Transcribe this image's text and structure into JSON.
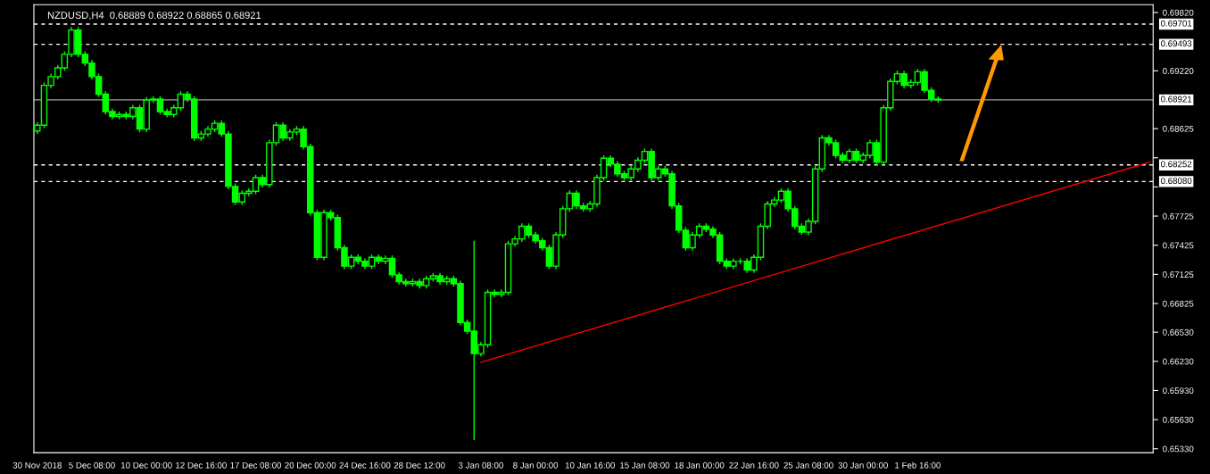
{
  "chart_data": {
    "type": "candlestick",
    "title": "NZDUSD,H4  0.68889 0.68922 0.68865 0.68921",
    "ylim": [
      0.6529,
      0.699
    ],
    "categories": [
      "30 Nov 2018",
      null,
      null,
      null,
      null,
      null,
      null,
      null,
      "5 Dec 08:00",
      null,
      null,
      null,
      null,
      null,
      null,
      null,
      "10 Dec 00:00",
      null,
      null,
      null,
      null,
      null,
      null,
      null,
      "12 Dec 16:00",
      null,
      null,
      null,
      null,
      null,
      null,
      null,
      "17 Dec 08:00",
      null,
      null,
      null,
      null,
      null,
      null,
      null,
      "20 Dec 00:00",
      null,
      null,
      null,
      null,
      null,
      null,
      null,
      "24 Dec 16:00",
      null,
      null,
      null,
      null,
      null,
      null,
      null,
      "28 Dec 12:00",
      null,
      null,
      null,
      null,
      null,
      null,
      null,
      null,
      "3 Jan 08:00",
      null,
      null,
      null,
      null,
      null,
      null,
      null,
      "8 Jan 00:00",
      null,
      null,
      null,
      null,
      null,
      null,
      null,
      "10 Jan 16:00",
      null,
      null,
      null,
      null,
      null,
      null,
      null,
      "15 Jan 08:00",
      null,
      null,
      null,
      null,
      null,
      null,
      null,
      "18 Jan 00:00",
      null,
      null,
      null,
      null,
      null,
      null,
      null,
      "22 Jan 16:00",
      null,
      null,
      null,
      null,
      null,
      null,
      null,
      "25 Jan 08:00",
      null,
      null,
      null,
      null,
      null,
      null,
      null,
      "30 Jan 00:00",
      null,
      null,
      null,
      null,
      null,
      null,
      null,
      "1 Feb 16:00",
      null,
      null,
      null,
      null,
      null,
      null,
      null,
      null,
      null,
      null,
      null,
      null,
      null,
      null,
      null,
      null,
      null,
      null,
      null,
      null,
      null,
      null,
      null,
      null,
      null,
      null,
      null,
      null,
      null,
      null,
      null,
      null,
      null,
      null
    ],
    "yticks": [
      {
        "value": 0.6982,
        "label": "0.69820"
      },
      {
        "value": 0.6922,
        "label": "0.69220"
      },
      {
        "value": 0.68625,
        "label": "0.68625"
      },
      {
        "value": 0.68325,
        "label": null
      },
      {
        "value": 0.68025,
        "label": null
      },
      {
        "value": 0.67725,
        "label": "0.67725"
      },
      {
        "value": 0.67425,
        "label": "0.67425"
      },
      {
        "value": 0.67125,
        "label": "0.67125"
      },
      {
        "value": 0.66825,
        "label": "0.66825"
      },
      {
        "value": 0.6653,
        "label": "0.66530"
      },
      {
        "value": 0.6623,
        "label": "0.66230"
      },
      {
        "value": 0.6593,
        "label": "0.65930"
      },
      {
        "value": 0.6563,
        "label": "0.65630"
      },
      {
        "value": 0.6533,
        "label": "0.65330"
      }
    ],
    "ref_lines": [
      {
        "axis": "y",
        "value": 0.69701,
        "label": "0.69701",
        "color": "#ffffff",
        "line_style": "dashed"
      },
      {
        "axis": "y",
        "value": 0.69493,
        "label": "0.69493",
        "color": "#ffffff",
        "line_style": "dashed"
      },
      {
        "axis": "y",
        "value": 0.68921,
        "label": "0.68921",
        "color": "#a0a0a0",
        "line_style": "solid"
      },
      {
        "axis": "y",
        "value": 0.68252,
        "label": "0.68252",
        "color": "#ffffff",
        "line_style": "dashed"
      },
      {
        "axis": "y",
        "value": 0.6808,
        "label": "0.68080",
        "color": "#ffffff",
        "line_style": "dashed"
      }
    ],
    "series": [
      {
        "color": "#00ff00",
        "ohlc": [
          [
            0.686,
            0.6869,
            0.6857,
            0.6866
          ],
          [
            0.6866,
            0.691,
            0.6863,
            0.6907
          ],
          [
            0.6907,
            0.6919,
            0.6904,
            0.6916
          ],
          [
            0.6916,
            0.6928,
            0.6913,
            0.6925
          ],
          [
            0.6925,
            0.6942,
            0.6922,
            0.6939
          ],
          [
            0.6939,
            0.6967,
            0.6936,
            0.6964
          ],
          [
            0.6964,
            0.6967,
            0.6936,
            0.6939
          ],
          [
            0.6939,
            0.6942,
            0.6927,
            0.693
          ],
          [
            0.693,
            0.6933,
            0.6913,
            0.6916
          ],
          [
            0.6916,
            0.6919,
            0.6895,
            0.6898
          ],
          [
            0.6898,
            0.6901,
            0.6877,
            0.688
          ],
          [
            0.688,
            0.6883,
            0.6872,
            0.6875
          ],
          [
            0.6875,
            0.688,
            0.6872,
            0.6877
          ],
          [
            0.6877,
            0.688,
            0.6872,
            0.6875
          ],
          [
            0.6875,
            0.6887,
            0.6872,
            0.6884
          ],
          [
            0.6884,
            0.6887,
            0.6859,
            0.6862
          ],
          [
            0.6862,
            0.6895,
            0.6859,
            0.6892
          ],
          [
            0.6892,
            0.6896,
            0.6889,
            0.6893
          ],
          [
            0.6893,
            0.6896,
            0.6877,
            0.688
          ],
          [
            0.688,
            0.6883,
            0.6874,
            0.6877
          ],
          [
            0.6877,
            0.6887,
            0.6874,
            0.6884
          ],
          [
            0.6884,
            0.6901,
            0.6881,
            0.6898
          ],
          [
            0.6898,
            0.6901,
            0.689,
            0.6893
          ],
          [
            0.6893,
            0.6896,
            0.685,
            0.6853
          ],
          [
            0.6853,
            0.686,
            0.685,
            0.6857
          ],
          [
            0.6857,
            0.6865,
            0.6854,
            0.6862
          ],
          [
            0.6862,
            0.6871,
            0.6859,
            0.6868
          ],
          [
            0.6868,
            0.6871,
            0.6854,
            0.6857
          ],
          [
            0.6857,
            0.686,
            0.68,
            0.6803
          ],
          [
            0.6803,
            0.6806,
            0.6784,
            0.6787
          ],
          [
            0.6787,
            0.6799,
            0.6784,
            0.6796
          ],
          [
            0.6796,
            0.6801,
            0.6793,
            0.6798
          ],
          [
            0.6798,
            0.6815,
            0.6795,
            0.6812
          ],
          [
            0.6812,
            0.6815,
            0.6802,
            0.6805
          ],
          [
            0.6805,
            0.6851,
            0.6802,
            0.6848
          ],
          [
            0.6848,
            0.6869,
            0.6845,
            0.6866
          ],
          [
            0.6866,
            0.6869,
            0.685,
            0.6853
          ],
          [
            0.6853,
            0.6862,
            0.685,
            0.6859
          ],
          [
            0.6859,
            0.6865,
            0.6856,
            0.6862
          ],
          [
            0.6862,
            0.6865,
            0.6841,
            0.6844
          ],
          [
            0.6844,
            0.6847,
            0.6773,
            0.6776
          ],
          [
            0.6776,
            0.6779,
            0.6727,
            0.673
          ],
          [
            0.673,
            0.6779,
            0.6727,
            0.6776
          ],
          [
            0.6776,
            0.6779,
            0.6768,
            0.6771
          ],
          [
            0.6771,
            0.6774,
            0.6737,
            0.674
          ],
          [
            0.674,
            0.6743,
            0.6718,
            0.6721
          ],
          [
            0.6721,
            0.6733,
            0.6718,
            0.673
          ],
          [
            0.673,
            0.6733,
            0.6723,
            0.6726
          ],
          [
            0.6726,
            0.6729,
            0.6718,
            0.6721
          ],
          [
            0.6721,
            0.6733,
            0.6718,
            0.673
          ],
          [
            0.673,
            0.6733,
            0.6723,
            0.6726
          ],
          [
            0.6726,
            0.6732,
            0.6723,
            0.6729
          ],
          [
            0.6729,
            0.6732,
            0.6709,
            0.6712
          ],
          [
            0.6712,
            0.6715,
            0.6702,
            0.6705
          ],
          [
            0.6705,
            0.6708,
            0.67,
            0.6703
          ],
          [
            0.6703,
            0.6708,
            0.67,
            0.6705
          ],
          [
            0.6705,
            0.6708,
            0.6698,
            0.6701
          ],
          [
            0.6701,
            0.6711,
            0.6698,
            0.6708
          ],
          [
            0.6708,
            0.6714,
            0.6705,
            0.6711
          ],
          [
            0.6711,
            0.6714,
            0.6702,
            0.6705
          ],
          [
            0.6705,
            0.6711,
            0.6702,
            0.6708
          ],
          [
            0.6708,
            0.6711,
            0.67,
            0.6703
          ],
          [
            0.6703,
            0.6706,
            0.666,
            0.6663
          ],
          [
            0.6663,
            0.6666,
            0.6651,
            0.6654
          ],
          [
            0.6654,
            0.6747,
            0.6542,
            0.6631
          ],
          [
            0.6631,
            0.6643,
            0.6628,
            0.664
          ],
          [
            0.664,
            0.6697,
            0.6637,
            0.6694
          ],
          [
            0.6694,
            0.6697,
            0.6689,
            0.6692
          ],
          [
            0.6692,
            0.6697,
            0.6689,
            0.6694
          ],
          [
            0.6694,
            0.6747,
            0.6691,
            0.6744
          ],
          [
            0.6744,
            0.6752,
            0.6741,
            0.6749
          ],
          [
            0.6749,
            0.6765,
            0.6746,
            0.6762
          ],
          [
            0.6762,
            0.6765,
            0.675,
            0.6753
          ],
          [
            0.6753,
            0.6756,
            0.6744,
            0.6747
          ],
          [
            0.6747,
            0.675,
            0.6737,
            0.674
          ],
          [
            0.674,
            0.6743,
            0.6718,
            0.6721
          ],
          [
            0.6721,
            0.6756,
            0.6718,
            0.6753
          ],
          [
            0.6753,
            0.6783,
            0.675,
            0.678
          ],
          [
            0.678,
            0.6799,
            0.6777,
            0.6796
          ],
          [
            0.6796,
            0.6799,
            0.678,
            0.6783
          ],
          [
            0.6783,
            0.6786,
            0.6777,
            0.678
          ],
          [
            0.678,
            0.6788,
            0.6777,
            0.6785
          ],
          [
            0.6785,
            0.6815,
            0.6782,
            0.6812
          ],
          [
            0.6812,
            0.6835,
            0.6809,
            0.6832
          ],
          [
            0.6832,
            0.6835,
            0.6823,
            0.6826
          ],
          [
            0.6826,
            0.6829,
            0.6813,
            0.6816
          ],
          [
            0.6816,
            0.6819,
            0.6809,
            0.6812
          ],
          [
            0.6812,
            0.6824,
            0.6809,
            0.6821
          ],
          [
            0.6821,
            0.6833,
            0.6818,
            0.683
          ],
          [
            0.683,
            0.6842,
            0.6827,
            0.6839
          ],
          [
            0.6839,
            0.6842,
            0.6809,
            0.6812
          ],
          [
            0.6812,
            0.6824,
            0.6809,
            0.6821
          ],
          [
            0.6821,
            0.6824,
            0.6813,
            0.6816
          ],
          [
            0.6816,
            0.6819,
            0.678,
            0.6783
          ],
          [
            0.6783,
            0.6786,
            0.6755,
            0.6758
          ],
          [
            0.6758,
            0.6761,
            0.6737,
            0.674
          ],
          [
            0.674,
            0.6756,
            0.6737,
            0.6753
          ],
          [
            0.6753,
            0.6765,
            0.675,
            0.6762
          ],
          [
            0.6762,
            0.6765,
            0.6756,
            0.6759
          ],
          [
            0.6759,
            0.6762,
            0.675,
            0.6753
          ],
          [
            0.6753,
            0.6756,
            0.6723,
            0.6726
          ],
          [
            0.6726,
            0.6729,
            0.6718,
            0.6721
          ],
          [
            0.6721,
            0.6729,
            0.6718,
            0.6726
          ],
          [
            0.6726,
            0.6729,
            0.6723,
            0.6726
          ],
          [
            0.6726,
            0.6729,
            0.6714,
            0.6717
          ],
          [
            0.6717,
            0.6733,
            0.6714,
            0.673
          ],
          [
            0.673,
            0.6765,
            0.6727,
            0.6762
          ],
          [
            0.6762,
            0.6788,
            0.6759,
            0.6785
          ],
          [
            0.6785,
            0.6792,
            0.6782,
            0.6789
          ],
          [
            0.6789,
            0.6801,
            0.6786,
            0.6798
          ],
          [
            0.6798,
            0.6801,
            0.6777,
            0.678
          ],
          [
            0.678,
            0.6783,
            0.6759,
            0.6762
          ],
          [
            0.6762,
            0.6765,
            0.6753,
            0.6756
          ],
          [
            0.6756,
            0.677,
            0.6753,
            0.6767
          ],
          [
            0.6767,
            0.6824,
            0.6764,
            0.6821
          ],
          [
            0.6821,
            0.6856,
            0.6818,
            0.6853
          ],
          [
            0.6853,
            0.6856,
            0.6845,
            0.6848
          ],
          [
            0.6848,
            0.6851,
            0.6832,
            0.6835
          ],
          [
            0.6835,
            0.6838,
            0.6827,
            0.683
          ],
          [
            0.683,
            0.6842,
            0.6827,
            0.6839
          ],
          [
            0.6839,
            0.6842,
            0.6827,
            0.683
          ],
          [
            0.683,
            0.6838,
            0.6827,
            0.6835
          ],
          [
            0.6835,
            0.6851,
            0.6832,
            0.6848
          ],
          [
            0.6848,
            0.6851,
            0.6825,
            0.6828
          ],
          [
            0.6828,
            0.6887,
            0.6825,
            0.6884
          ],
          [
            0.6884,
            0.6914,
            0.6881,
            0.6911
          ],
          [
            0.6911,
            0.6922,
            0.6908,
            0.6919
          ],
          [
            0.6919,
            0.6922,
            0.6904,
            0.6907
          ],
          [
            0.6907,
            0.6913,
            0.6904,
            0.691
          ],
          [
            0.691,
            0.6924,
            0.6907,
            0.6921
          ],
          [
            0.6921,
            0.6924,
            0.6899,
            0.6902
          ],
          [
            0.6902,
            0.6905,
            0.689,
            0.6893
          ],
          [
            0.6893,
            0.6896,
            0.6889,
            0.6892
          ],
          null,
          null,
          null,
          null,
          null,
          null,
          null,
          null,
          null,
          null,
          null,
          null,
          null,
          null,
          null,
          null,
          null,
          null,
          null,
          null,
          null,
          null,
          null,
          null,
          null,
          null,
          null,
          null,
          null,
          null,
          null
        ]
      },
      {
        "type": "line",
        "color": "#ff0000",
        "values": [
          null,
          null,
          null,
          null,
          null,
          null,
          null,
          null,
          null,
          null,
          null,
          null,
          null,
          null,
          null,
          null,
          null,
          null,
          null,
          null,
          null,
          null,
          null,
          null,
          null,
          null,
          null,
          null,
          null,
          null,
          null,
          null,
          null,
          null,
          null,
          null,
          null,
          null,
          null,
          null,
          null,
          null,
          null,
          null,
          null,
          null,
          null,
          null,
          null,
          null,
          null,
          null,
          null,
          null,
          null,
          null,
          null,
          null,
          null,
          null,
          null,
          null,
          null,
          null,
          null,
          0.6622,
          null,
          null,
          null,
          null,
          null,
          null,
          null,
          null,
          null,
          null,
          null,
          null,
          null,
          null,
          null,
          null,
          null,
          null,
          null,
          null,
          null,
          null,
          null,
          null,
          null,
          null,
          null,
          null,
          null,
          null,
          null,
          null,
          null,
          null,
          null,
          null,
          null,
          null,
          null,
          null,
          null,
          null,
          null,
          null,
          null,
          null,
          null,
          null,
          null,
          null,
          null,
          null,
          null,
          null,
          null,
          null,
          null,
          null,
          null,
          null,
          null,
          null,
          null,
          null,
          null,
          null,
          null,
          null,
          null,
          null,
          null,
          null,
          null,
          null,
          null,
          null,
          null,
          null,
          null,
          null,
          null,
          null,
          null,
          null,
          null,
          null,
          null,
          null,
          null,
          null,
          null,
          null,
          null,
          null,
          null,
          null,
          null,
          0.6828
        ]
      }
    ]
  }
}
